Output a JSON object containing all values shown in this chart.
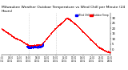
{
  "title": "Milwaukee Weather Outdoor Temperature vs Wind Chill per Minute (24 Hours)",
  "background_color": "#ffffff",
  "temp_color": "#ff0000",
  "wind_chill_color": "#0000ff",
  "legend_temp_label": "Outdoor Temp",
  "legend_wc_label": "Wind Chill",
  "ylim": [
    -5,
    35
  ],
  "yticks": [
    0,
    5,
    10,
    15,
    20,
    25,
    30
  ],
  "ytick_labels": [
    "0",
    "5",
    "10",
    "15",
    "20",
    "25",
    "30"
  ],
  "num_points": 1440,
  "vline_positions": [
    360,
    720
  ],
  "vline_color": "#aaaaaa",
  "title_fontsize": 3.2,
  "tick_fontsize": 2.8,
  "dot_size": 0.4
}
